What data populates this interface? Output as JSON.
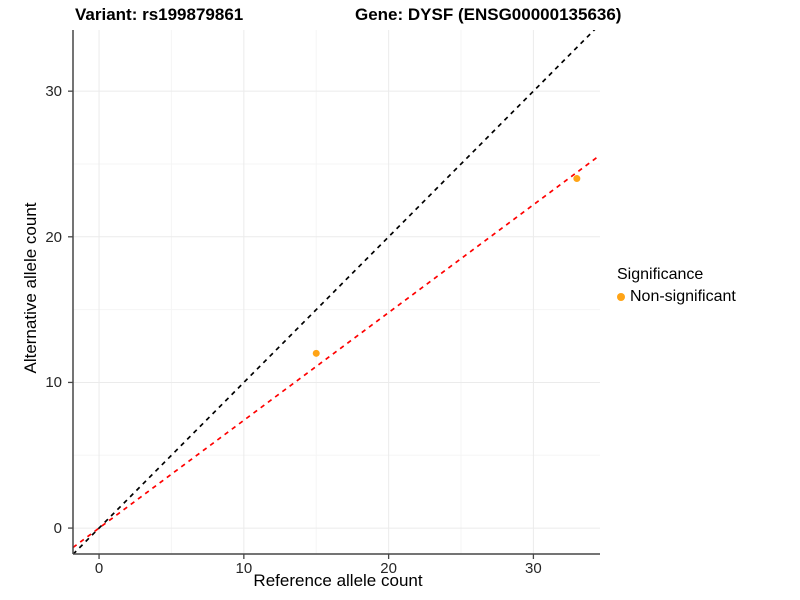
{
  "title": {
    "variant": "Variant: rs199879861",
    "gene": "Gene: DYSF (ENSG00000135636)"
  },
  "chart_data": {
    "type": "scatter",
    "title": "Variant: rs199879861   Gene: DYSF (ENSG00000135636)",
    "xlabel": "Reference allele count",
    "ylabel": "Alternative allele count",
    "xlim": [
      -1.8,
      34.6
    ],
    "ylim": [
      -1.78,
      34.2
    ],
    "x_ticks": [
      0,
      10,
      20,
      30
    ],
    "y_ticks": [
      0,
      10,
      20,
      30
    ],
    "x_minor_ticks": [
      5,
      15,
      25
    ],
    "y_minor_ticks": [
      5,
      15,
      25
    ],
    "grid": "major-and-minor",
    "legend_position": "right",
    "series": [
      {
        "name": "Non-significant",
        "color": "#FFA416",
        "points": [
          {
            "x": 15,
            "y": 12
          },
          {
            "x": 33,
            "y": 24
          }
        ]
      }
    ],
    "reference_lines": [
      {
        "name": "identity-line",
        "slope": 1,
        "intercept": 0,
        "color": "#000000",
        "linetype": "dashed"
      },
      {
        "name": "fit-line",
        "slope": 0.74,
        "intercept": 0,
        "color": "#FF0000",
        "linetype": "dashed"
      }
    ],
    "legend": {
      "title": "Significance",
      "items": [
        {
          "label": "Non-significant",
          "color": "#FFA416"
        }
      ]
    }
  },
  "colors": {
    "background": "#FFFFFF",
    "grid_major": "#EBEBEB",
    "grid_minor": "#F5F5F5",
    "axis_line": "#474747",
    "tick_mark": "#474747",
    "tick_text": "#262626",
    "point": "#FFA416",
    "identity_line": "#000000",
    "fit_line": "#FF0000"
  }
}
